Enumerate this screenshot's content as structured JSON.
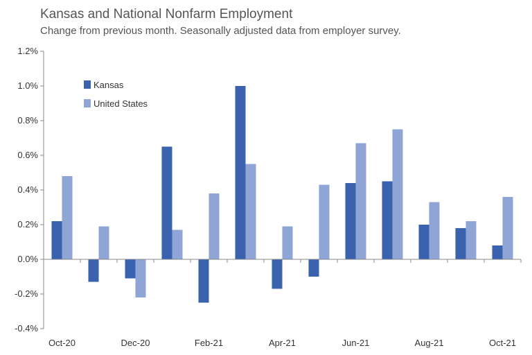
{
  "chart_data": {
    "type": "bar",
    "title": "Kansas and National Nonfarm Employment",
    "subtitle": "Change from previous month. Seasonally adjusted data from employer survey.",
    "categories": [
      "Oct-20",
      "Nov-20",
      "Dec-20",
      "Jan-21",
      "Feb-21",
      "Mar-21",
      "Apr-21",
      "May-21",
      "Jun-21",
      "Jul-21",
      "Aug-21",
      "Sep-21",
      "Oct-21"
    ],
    "category_labels": [
      "Oct-20",
      "",
      "Dec-20",
      "",
      "Feb-21",
      "",
      "Apr-21",
      "",
      "Jun-21",
      "",
      "Aug-21",
      "",
      "Oct-21"
    ],
    "series": [
      {
        "name": "Kansas",
        "color": "#3A62AE",
        "values": [
          0.22,
          -0.13,
          -0.11,
          0.65,
          -0.25,
          1.0,
          -0.17,
          -0.1,
          0.44,
          0.45,
          0.2,
          0.18,
          0.08
        ]
      },
      {
        "name": "United States",
        "color": "#8EA5D6",
        "values": [
          0.48,
          0.19,
          -0.22,
          0.17,
          0.38,
          0.55,
          0.19,
          0.43,
          0.67,
          0.75,
          0.33,
          0.22,
          0.36
        ]
      }
    ],
    "ylim": [
      -0.4,
      1.2
    ],
    "yticks": [
      -0.4,
      -0.2,
      0.0,
      0.2,
      0.4,
      0.6,
      0.8,
      1.0,
      1.2
    ],
    "ytick_labels": [
      "-0.4%",
      "-0.2%",
      "0.0%",
      "0.2%",
      "0.4%",
      "0.6%",
      "0.8%",
      "1.0%",
      "1.2%"
    ],
    "legend_position": "top-left",
    "xlabel": "",
    "ylabel": "",
    "grid": false
  }
}
